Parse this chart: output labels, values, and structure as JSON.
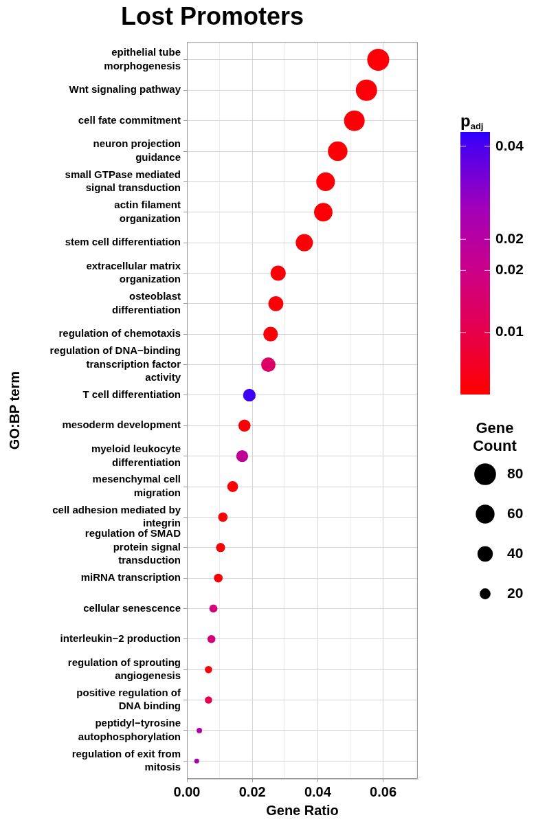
{
  "chart_data": {
    "type": "bubble",
    "title": "Lost Promoters",
    "xlabel": "Gene Ratio",
    "ylabel": "GO:BP term",
    "categories": [
      "epithelial tube morphogenesis",
      "Wnt signaling pathway",
      "cell fate commitment",
      "neuron projection guidance",
      "small GTPase mediated signal transduction",
      "actin filament organization",
      "stem cell differentiation",
      "extracellular matrix organization",
      "osteoblast differentiation",
      "regulation of chemotaxis",
      "regulation of DNA−binding transcription factor activity",
      "T cell differentiation",
      "mesoderm development",
      "myeloid leukocyte differentiation",
      "mesenchymal cell migration",
      "cell adhesion mediated by integrin",
      "regulation of SMAD protein signal transduction",
      "miRNA transcription",
      "cellular senescence",
      "interleukin−2 production",
      "regulation of sprouting angiogenesis",
      "positive regulation of DNA binding",
      "peptidyl−tyrosine autophosphorylation",
      "regulation of exit from mitosis"
    ],
    "orientation": "horizontal",
    "values": [
      0.0585,
      0.0549,
      0.0512,
      0.0461,
      0.0424,
      0.0417,
      0.0359,
      0.0279,
      0.0272,
      0.0256,
      0.0249,
      0.0191,
      0.0176,
      0.0169,
      0.014,
      0.011,
      0.0103,
      0.0096,
      0.0081,
      0.0075,
      0.0066,
      0.0066,
      0.0038,
      0.003
    ],
    "sizes": [
      82,
      77,
      72,
      65,
      59,
      58,
      50,
      39,
      38,
      36,
      35,
      27,
      25,
      24,
      20,
      15,
      14,
      13,
      11,
      11,
      9,
      9,
      5,
      4
    ],
    "cvalues": [
      0.001,
      0.001,
      0.001,
      0.001,
      0.001,
      0.001,
      0.001,
      0.001,
      0.001,
      0.001,
      0.014,
      0.041,
      0.001,
      0.023,
      0.001,
      0.001,
      0.001,
      0.001,
      0.017,
      0.017,
      0.001,
      0.01,
      0.027,
      0.029
    ],
    "size_legend": [
      20,
      40,
      60,
      80
    ],
    "legend_title": "Gene Count",
    "clabel": "p$_{adj}$",
    "clim": [
      0,
      0.0423
    ],
    "cticks": [
      {
        "value": 0.01,
        "label": "0.01"
      },
      {
        "value": 0.02,
        "label": "0.02"
      },
      {
        "value": 0.025,
        "label": "0.02"
      },
      {
        "value": 0.04,
        "label": "0.04"
      }
    ],
    "xlim": [
      0,
      0.0706
    ],
    "xticks": [
      {
        "value": 0,
        "label": "0.00"
      },
      {
        "value": 0.01,
        "label": null
      },
      0.02,
      {
        "value": 0.03,
        "label": null
      },
      0.04,
      {
        "value": 0.05,
        "label": null
      },
      0.06,
      {
        "value": 0.07,
        "label": null
      }
    ],
    "grid": true
  }
}
